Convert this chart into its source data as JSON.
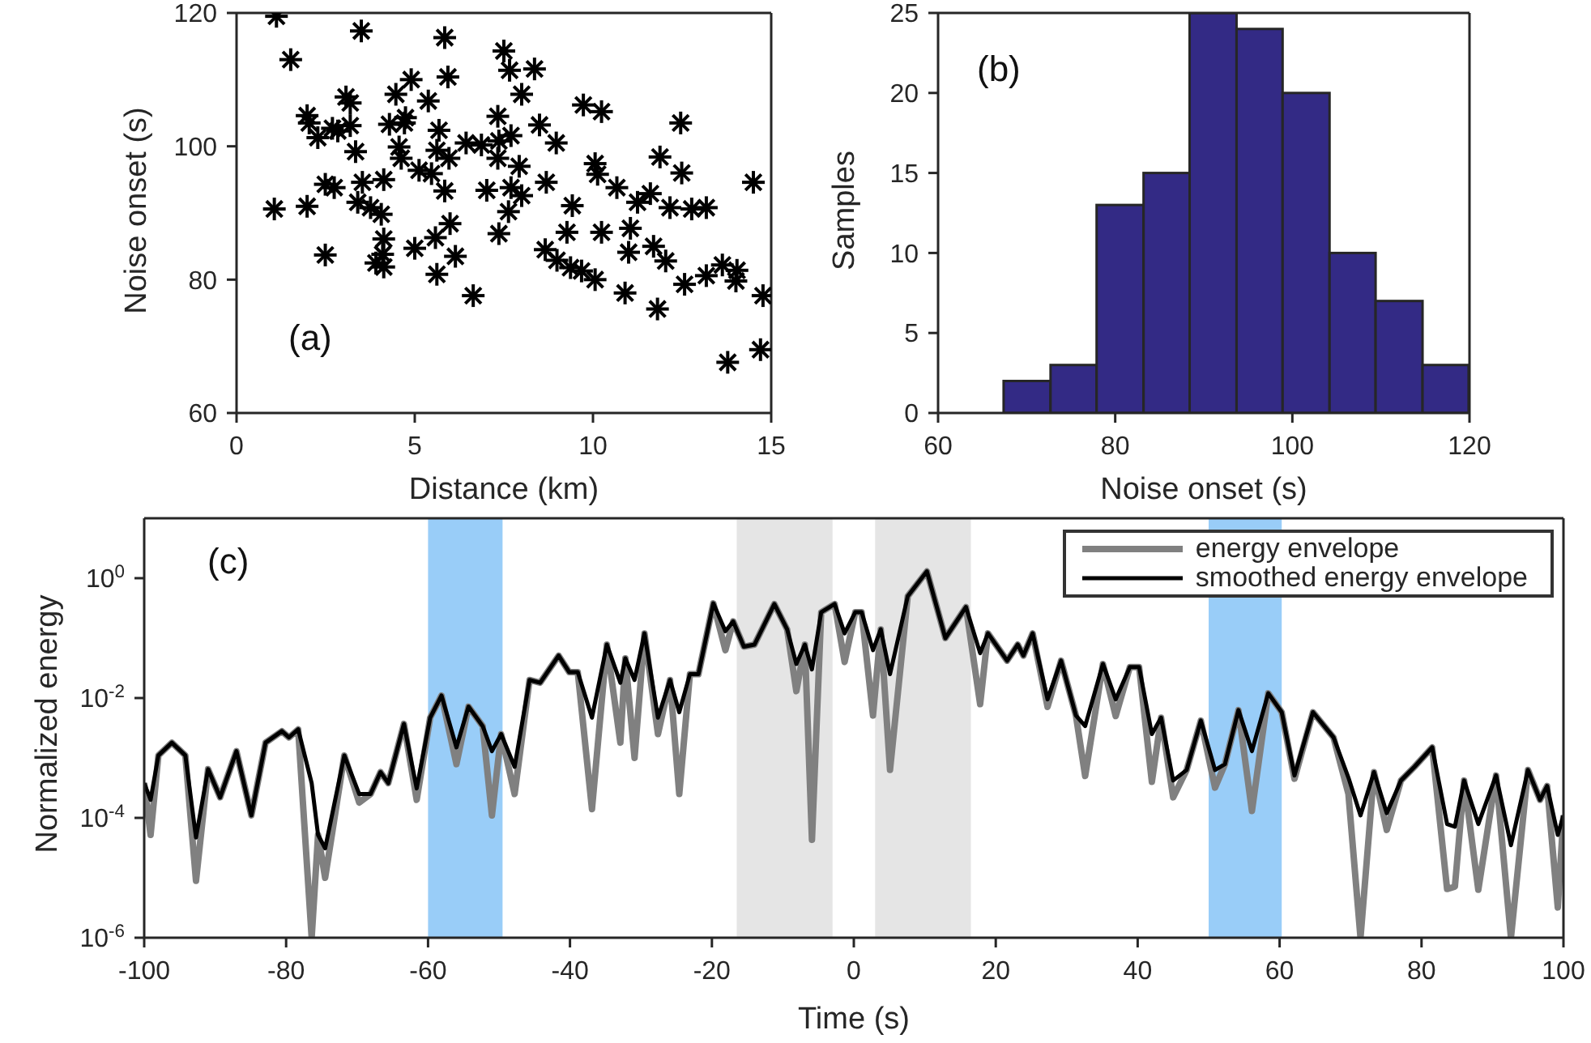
{
  "chart_data": [
    {
      "type": "scatter",
      "xlabel": "Distance (km)",
      "ylabel": "Noise onset (s)",
      "annotations": [
        "(a)"
      ],
      "marker": "cross",
      "color": "#000000",
      "xlim": [
        0,
        15
      ],
      "ylim": [
        60,
        120
      ],
      "xticks": [
        0,
        5,
        10,
        15
      ],
      "yticks": [
        60,
        80,
        100,
        120
      ],
      "x": [
        1.12,
        1.52,
        3.5,
        5.84,
        7.5,
        7.66,
        8.36,
        4.9,
        5.93,
        3.07,
        3.19,
        4.47,
        5.38,
        8.0,
        9.73,
        10.24,
        12.46,
        1.98,
        2.04,
        2.28,
        2.84,
        3.19,
        3.34,
        4.29,
        4.74,
        4.71,
        5.68,
        4.56,
        4.62,
        5.62,
        5.96,
        6.44,
        6.87,
        7.33,
        7.36,
        7.7,
        8.5,
        8.97,
        7.33,
        7.93,
        5.12,
        5.47,
        2.49,
        2.74,
        3.53,
        3.4,
        3.76,
        4.13,
        4.06,
        5.84,
        7.02,
        7.7,
        8.0,
        7.63,
        8.69,
        10.06,
        10.13,
        10.67,
        9.42,
        11.25,
        11.61,
        11.88,
        12.49,
        12.16,
        12.77,
        13.18,
        14.5,
        1.06,
        1.98,
        2.49,
        4.13,
        4.1,
        3.91,
        4.13,
        5.0,
        5.58,
        5.99,
        6.14,
        5.62,
        6.64,
        7.36,
        9.27,
        8.66,
        8.99,
        9.37,
        9.68,
        10.06,
        10.24,
        11.05,
        11.0,
        11.7,
        12.04,
        10.9,
        11.81,
        12.57,
        13.18,
        13.63,
        14.04,
        14.01,
        14.77,
        13.78,
        14.7,
        2.69
      ],
      "values": [
        119.5,
        113,
        117.3,
        116.3,
        114.3,
        111.4,
        111.6,
        110,
        110.4,
        107.4,
        106.5,
        107.8,
        106.8,
        107.8,
        106.2,
        105.2,
        103.5,
        104.6,
        103.5,
        101.3,
        102.3,
        103.1,
        99.2,
        103.3,
        104.3,
        103.5,
        102.4,
        99.9,
        98.2,
        99.4,
        98.2,
        100.5,
        100.2,
        104.5,
        100.8,
        101.6,
        103.2,
        100.5,
        98.2,
        97,
        96.4,
        95.9,
        94.3,
        93.8,
        94.6,
        91.6,
        90.8,
        95,
        89.8,
        93.3,
        93.4,
        93.8,
        92.6,
        90.2,
        94.6,
        97.4,
        95.8,
        93.8,
        91.1,
        91.6,
        92.9,
        98.4,
        96,
        90.8,
        90.6,
        90.8,
        94.6,
        90.6,
        91,
        83.7,
        86.1,
        83.8,
        82.5,
        81.9,
        84.7,
        86.3,
        88.4,
        83.5,
        80.8,
        77.6,
        86.9,
        87.1,
        84.5,
        82.9,
        81.8,
        81.3,
        80,
        87.1,
        87.7,
        84.1,
        85,
        82.8,
        78,
        75.6,
        79.3,
        80.6,
        82.2,
        81.4,
        79.8,
        77.6,
        67.6,
        69.5,
        102.7
      ]
    },
    {
      "type": "histogram",
      "xlabel": "Noise onset (s)",
      "ylabel": "Samples",
      "annotations": [
        "(b)"
      ],
      "color": "#332a85",
      "xlim": [
        60,
        120
      ],
      "ylim": [
        0,
        25
      ],
      "xticks": [
        60,
        80,
        100,
        120
      ],
      "yticks": [
        0,
        5,
        10,
        15,
        20,
        25
      ],
      "bins": [
        67.4,
        72.7,
        77.9,
        83.2,
        88.4,
        93.7,
        98.9,
        104.2,
        109.4,
        114.7,
        119.9
      ],
      "values": [
        2,
        3,
        13,
        15,
        25,
        24,
        20,
        10,
        7,
        3
      ]
    },
    {
      "type": "line",
      "xlabel": "Time (s)",
      "ylabel": "Normalized energy",
      "annotations": [
        "(c)"
      ],
      "log": "y",
      "legend": "top right",
      "line_style": "solid",
      "xlim": [
        -100,
        100
      ],
      "ylim": [
        1e-06,
        10
      ],
      "xticks": [
        -100,
        -80,
        -60,
        -40,
        -20,
        0,
        20,
        40,
        60,
        80,
        100
      ],
      "yticks": [
        {
          "value": 1e-06,
          "label": "10$^{-6}$"
        },
        {
          "value": 0.0001,
          "label": "10$^{-4}$"
        },
        {
          "value": 0.01,
          "label": "10$^{-2}$"
        },
        {
          "value": 1,
          "label": "10$^{0}$"
        }
      ],
      "bands": [
        {
          "axis": "x",
          "from": -60,
          "to": -49.5,
          "color": "#99cdf8"
        },
        {
          "axis": "x",
          "from": -16.5,
          "to": -3,
          "color": "#e5e5e5"
        },
        {
          "axis": "x",
          "from": 3,
          "to": 16.5,
          "color": "#e5e5e5"
        },
        {
          "axis": "x",
          "from": 50,
          "to": 60.3,
          "color": "#99cdf8"
        }
      ],
      "series": [
        {
          "name": "energy envelope",
          "color": "#808080",
          "x": [
            -100,
            -99.1,
            -98,
            -96.1,
            -94.2,
            -92.7,
            -91,
            -89.3,
            -87,
            -84.9,
            -82.9,
            -80.6,
            -79.6,
            -78.3,
            -76.4,
            -75.5,
            -74.5,
            -71.8,
            -69.7,
            -68.1,
            -66.7,
            -65.6,
            -63.4,
            -61.6,
            -59.7,
            -58.1,
            -56,
            -54.3,
            -52.3,
            -51,
            -49.7,
            -47.8,
            -45.7,
            -44.2,
            -41.6,
            -40.1,
            -38.9,
            -36.9,
            -34.8,
            -32.9,
            -32.2,
            -30.9,
            -29.5,
            -27.6,
            -25.9,
            -24.6,
            -23.1,
            -21.9,
            -19.8,
            -18.1,
            -17,
            -15.5,
            -14,
            -11.2,
            -9.4,
            -8.1,
            -6.9,
            -5.9,
            -4.6,
            -2.7,
            -1.3,
            0.2,
            1.1,
            2.7,
            3.8,
            5.1,
            7.6,
            10.3,
            12.9,
            15.8,
            17.8,
            18.9,
            21.6,
            23.1,
            23.9,
            25.2,
            27.3,
            29.2,
            31.3,
            32.6,
            35.1,
            36.9,
            38.9,
            40.2,
            42,
            43.3,
            45,
            46.9,
            48.9,
            50.9,
            52.3,
            54.2,
            56.1,
            58.4,
            60.3,
            62.1,
            64.7,
            67.6,
            69.7,
            71.4,
            73.3,
            75.1,
            77.1,
            79,
            81.5,
            83.6,
            84.7,
            86,
            88,
            90.5,
            92.6,
            95,
            96.7,
            97.7,
            99.2,
            100
          ],
          "values": [
            0.00038,
            5.2e-05,
            0.0011,
            0.0018,
            0.0011,
            8.9e-06,
            0.00065,
            0.00022,
            0.0013,
            0.00011,
            0.0018,
            0.0028,
            0.0022,
            0.003,
            1e-06,
            5.2e-05,
            1e-05,
            0.0011,
            0.00018,
            0.00025,
            0.00058,
            0.00038,
            0.0037,
            0.0002,
            0.0047,
            0.011,
            0.00079,
            0.0072,
            0.0034,
            0.00011,
            0.0025,
            0.00025,
            0.02,
            0.018,
            0.051,
            0.027,
            0.027,
            0.00014,
            0.078,
            0.0018,
            0.046,
            0.001,
            0.12,
            0.0025,
            0.02,
            0.00025,
            0.025,
            0.025,
            0.38,
            0.063,
            0.19,
            0.072,
            0.078,
            0.37,
            0.14,
            0.013,
            0.078,
            4.3e-05,
            0.27,
            0.37,
            0.04,
            0.27,
            0.27,
            0.0051,
            0.14,
            0.00063,
            0.5,
            1.3,
            0.1,
            0.33,
            0.0079,
            0.12,
            0.042,
            0.078,
            0.051,
            0.12,
            0.0071,
            0.042,
            0.0051,
            0.0005,
            0.037,
            0.005,
            0.033,
            0.033,
            0.0004,
            0.0047,
            0.00022,
            0.00063,
            0.0042,
            0.00032,
            0.00079,
            0.0063,
            0.00013,
            0.012,
            0.0058,
            0.00045,
            0.0058,
            0.0022,
            0.00025,
            1e-06,
            0.00058,
            6.3e-05,
            0.00042,
            0.00071,
            0.0015,
            6.5e-06,
            7.1e-06,
            0.00042,
            6.3e-06,
            0.00051,
            1e-06,
            0.00063,
            0.0002,
            0.00034,
            3.2e-06,
            0.00011
          ]
        },
        {
          "name": "smoothed energy envelope",
          "color": "#000000",
          "x": [
            -100,
            -99.1,
            -98,
            -96.1,
            -94.2,
            -92.7,
            -91,
            -89.3,
            -87,
            -84.9,
            -82.9,
            -80.6,
            -79.6,
            -78.3,
            -76.4,
            -75.5,
            -74.5,
            -71.8,
            -69.7,
            -68.1,
            -66.7,
            -65.6,
            -63.4,
            -61.6,
            -59.7,
            -58.1,
            -56,
            -54.3,
            -52.3,
            -51,
            -49.7,
            -47.8,
            -45.7,
            -44.2,
            -41.6,
            -40.1,
            -38.9,
            -36.9,
            -34.8,
            -32.9,
            -32.2,
            -30.9,
            -29.5,
            -27.6,
            -25.9,
            -24.6,
            -23.1,
            -21.9,
            -19.8,
            -18.1,
            -17,
            -15.5,
            -14,
            -11.2,
            -9.4,
            -8.1,
            -6.9,
            -5.9,
            -4.6,
            -2.7,
            -1.3,
            0.2,
            1.1,
            2.7,
            3.8,
            5.1,
            7.6,
            10.3,
            12.9,
            15.8,
            17.8,
            18.9,
            21.6,
            23.1,
            23.9,
            25.2,
            27.3,
            29.2,
            31.3,
            32.6,
            35.1,
            36.9,
            38.9,
            40.2,
            42,
            43.3,
            45,
            46.9,
            48.9,
            50.9,
            52.3,
            54.2,
            56.1,
            58.4,
            60.3,
            62.1,
            64.7,
            67.6,
            69.7,
            71.4,
            73.3,
            75.1,
            77.1,
            79,
            81.5,
            83.6,
            84.7,
            86,
            88,
            90.5,
            92.6,
            95,
            96.7,
            97.7,
            99.2,
            100
          ],
          "values": [
            0.00038,
            0.0002,
            0.0011,
            0.0018,
            0.0011,
            4.7e-05,
            0.00065,
            0.00022,
            0.0013,
            0.00011,
            0.0018,
            0.0028,
            0.0022,
            0.003,
            0.00038,
            5.2e-05,
            3.1e-05,
            0.0011,
            0.00025,
            0.00025,
            0.00058,
            0.00038,
            0.0037,
            0.00031,
            0.0047,
            0.011,
            0.0015,
            0.0072,
            0.0034,
            0.0013,
            0.0025,
            0.00071,
            0.02,
            0.018,
            0.051,
            0.027,
            0.027,
            0.0047,
            0.078,
            0.018,
            0.046,
            0.02,
            0.12,
            0.0047,
            0.02,
            0.0058,
            0.025,
            0.025,
            0.38,
            0.13,
            0.19,
            0.072,
            0.078,
            0.37,
            0.14,
            0.037,
            0.078,
            0.03,
            0.27,
            0.37,
            0.12,
            0.27,
            0.27,
            0.063,
            0.14,
            0.025,
            0.5,
            1.3,
            0.1,
            0.33,
            0.056,
            0.12,
            0.042,
            0.078,
            0.051,
            0.12,
            0.0095,
            0.042,
            0.0051,
            0.0034,
            0.037,
            0.0095,
            0.033,
            0.033,
            0.0025,
            0.0047,
            0.00042,
            0.00063,
            0.0042,
            0.00063,
            0.00079,
            0.0063,
            0.0013,
            0.012,
            0.0058,
            0.00051,
            0.0058,
            0.0022,
            0.00047,
            0.00011,
            0.00058,
            0.00012,
            0.00042,
            0.00071,
            0.0015,
            7.9e-05,
            7.1e-05,
            0.00042,
            7.9e-05,
            0.00051,
            3.5e-05,
            0.00063,
            0.0002,
            0.00034,
            5.2e-05,
            0.00011
          ]
        }
      ]
    }
  ]
}
